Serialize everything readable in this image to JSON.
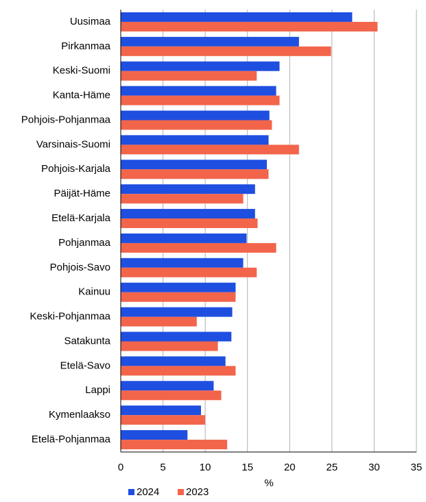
{
  "chart_data": {
    "type": "hbar",
    "x_label": "%",
    "categories": [
      "Uusimaa",
      "Pirkanmaa",
      "Keski-Suomi",
      "Kanta-Häme",
      "Pohjois-Pohjanmaa",
      "Varsinais-Suomi",
      "Pohjois-Karjala",
      "Päijät-Häme",
      "Etelä-Karjala",
      "Pohjanmaa",
      "Pohjois-Savo",
      "Kainuu",
      "Keski-Pohjanmaa",
      "Satakunta",
      "Etelä-Savo",
      "Lappi",
      "Kymenlaakso",
      "Etelä-Pohjanmaa"
    ],
    "series": [
      {
        "name": "2024",
        "color": "#1f4fe0",
        "values": [
          27.4,
          21.1,
          18.8,
          18.4,
          17.6,
          17.5,
          17.3,
          15.9,
          15.9,
          14.9,
          14.5,
          13.6,
          13.2,
          13.1,
          12.4,
          11.0,
          9.5,
          7.9
        ]
      },
      {
        "name": "2023",
        "color": "#f2654b",
        "values": [
          30.4,
          24.9,
          16.1,
          18.8,
          17.9,
          21.1,
          17.5,
          14.5,
          16.2,
          18.4,
          16.1,
          13.6,
          9.0,
          11.5,
          13.6,
          11.9,
          10.0,
          12.6
        ]
      }
    ],
    "xlim": [
      0,
      35
    ],
    "xticks": [
      0,
      5,
      10,
      15,
      20,
      25,
      30,
      35
    ],
    "grid": true
  }
}
